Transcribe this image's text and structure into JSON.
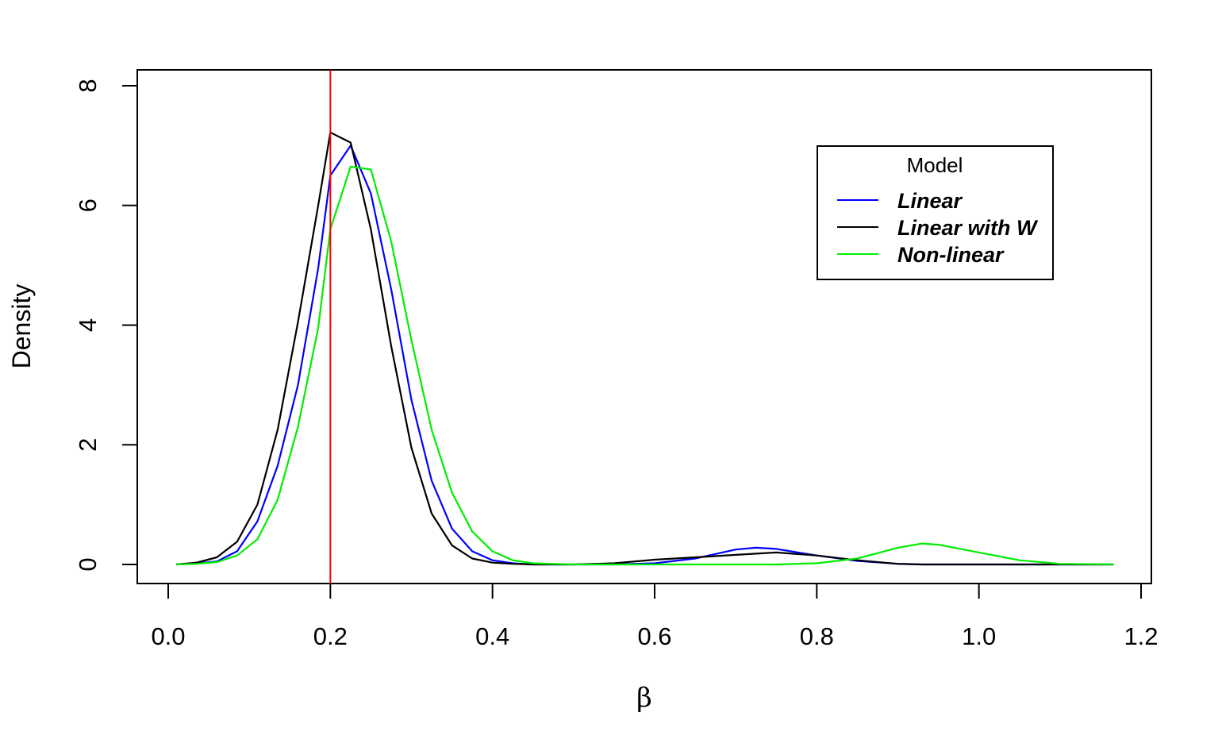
{
  "chart_data": {
    "type": "line",
    "title": "",
    "xlabel": "β",
    "ylabel": "Density",
    "xlim": [
      0.0,
      1.2
    ],
    "ylim": [
      0,
      8
    ],
    "x_ticks": [
      "0.0",
      "0.2",
      "0.4",
      "0.6",
      "0.8",
      "1.0",
      "1.2"
    ],
    "y_ticks": [
      "0",
      "2",
      "4",
      "6",
      "8"
    ],
    "grid": false,
    "reference_line": {
      "x": 0.2,
      "color": "#ff0000"
    },
    "legend": {
      "title": "Model",
      "placement": "top-right"
    },
    "x": [
      0.01,
      0.035,
      0.06,
      0.085,
      0.11,
      0.135,
      0.16,
      0.185,
      0.2,
      0.225,
      0.25,
      0.275,
      0.3,
      0.325,
      0.35,
      0.375,
      0.4,
      0.425,
      0.45,
      0.5,
      0.55,
      0.6,
      0.65,
      0.7,
      0.725,
      0.75,
      0.8,
      0.85,
      0.9,
      0.93,
      0.95,
      1.0,
      1.05,
      1.1,
      1.166
    ],
    "series": [
      {
        "name": "Linear",
        "color": "#0000ff",
        "values": [
          0.0,
          0.02,
          0.05,
          0.22,
          0.72,
          1.65,
          3.0,
          4.95,
          6.5,
          7.0,
          6.2,
          4.6,
          2.75,
          1.4,
          0.6,
          0.22,
          0.07,
          0.02,
          0.0,
          0.0,
          0.0,
          0.02,
          0.1,
          0.25,
          0.28,
          0.26,
          0.15,
          0.06,
          0.01,
          0.0,
          0.0,
          0.0,
          0.0,
          0.0,
          0.0
        ]
      },
      {
        "name": "Linear with W",
        "color": "#000000",
        "values": [
          0.0,
          0.03,
          0.12,
          0.38,
          1.0,
          2.25,
          4.05,
          6.0,
          7.22,
          7.05,
          5.6,
          3.65,
          1.95,
          0.85,
          0.32,
          0.1,
          0.03,
          0.01,
          0.0,
          0.0,
          0.02,
          0.08,
          0.12,
          0.16,
          0.18,
          0.2,
          0.15,
          0.07,
          0.01,
          0.0,
          0.0,
          0.0,
          0.0,
          0.0,
          0.0
        ]
      },
      {
        "name": "Non-linear",
        "color": "#00ee00",
        "values": [
          0.0,
          0.01,
          0.04,
          0.15,
          0.42,
          1.08,
          2.3,
          3.95,
          5.6,
          6.65,
          6.6,
          5.4,
          3.75,
          2.25,
          1.2,
          0.55,
          0.22,
          0.07,
          0.02,
          0.0,
          0.0,
          0.0,
          0.0,
          0.0,
          0.0,
          0.0,
          0.02,
          0.1,
          0.28,
          0.35,
          0.33,
          0.2,
          0.07,
          0.01,
          0.0
        ]
      }
    ]
  }
}
